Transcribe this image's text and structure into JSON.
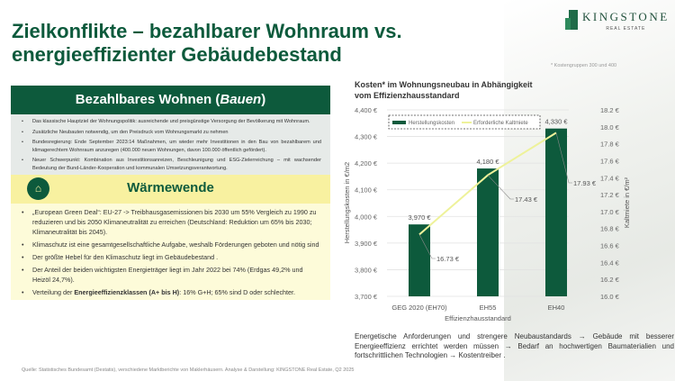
{
  "header": {
    "title_line1": "Zielkonflikte – bezahlbarer Wohnraum vs.",
    "title_line2": "energieeffizienter Gebäudebestand",
    "logo_name": "KINGSTONE",
    "logo_sub": "REAL ESTATE"
  },
  "left": {
    "section1": {
      "title": "Bezahlbares Wohnen (",
      "title_italic": "Bauen",
      "title_end": ")",
      "bullets": [
        "Das klassische Hauptziel der Wohnungspolitik: ausreichende und preisgünstige Versorgung der Bevölkerung mit Wohnraum.",
        "Zusätzliche Neubauten notwendig, um den Preisdruck vom Wohnungsmarkt zu nehmen",
        "Bundesregierung: Ende September 2023:14 Maßnahmen, um wieder mehr Investitionen in den Bau von bezahlbarem und klimagerechtem Wohnraum anzuregen (400.000 neuen Wohnungen, davon 100.000 öffentlich gefördert).",
        "Neuer Schwerpunkt: Kombination aus Investitionsanreizen, Beschleunigung und ESG-Zielerreichung – mit wachsender Bedeutung der Bund-Länder-Kooperation und kommunalen Umsetzungsverantwortung."
      ]
    },
    "section2": {
      "title": "Wärmewende",
      "bullets": [
        "„European Green Deal“:  EU-27 -> Treibhausgasemissionen bis 2030 um 55% Vergleich zu 1990 zu reduzieren und bis 2050 Klimaneutralität zu erreichen (Deutschland: Reduktion um 65% bis 2030; Klimaneutralität bis 2045).",
        "Klimaschutz ist eine gesamtgesellschaftliche Aufgabe, weshalb Förderungen geboten und nötig sind",
        "Der größte Hebel für den Klimaschutz liegt im Gebäudebestand .",
        "Der Anteil der beiden wichtigsten Energieträger liegt im Jahr 2022 bei 74% (Erdgas 49,2% und Heizöl 24,7%)."
      ],
      "last_pre": "Verteilung der ",
      "last_bold": "Energieeffizienzklassen (A+ bis H)",
      "last_post": ": 16% G+H; 65% sind D oder schlechter."
    }
  },
  "source": "Quelle: Statistisches Bundesamt (Destatis), verschiedene Marktberichte von Maklerhäusern. Analyse & Darstellung: KINGSTONE Real Estate, Q2 2025",
  "footnote": "* Kostengruppen 300 und 400",
  "chart_title_1": "Kosten* im Wohnungsneubau in Abhängigkeit",
  "chart_title_2": "vom Effizienzhausstandard",
  "comment": "Energetische Anforderungen und strengere Neubaustandards → Gebäude mit besserer Energieeffizienz errichtet werden müssen → Bedarf an hochwertigen Baumaterialien und fortschrittlichen Technologien → Kostentreiber .",
  "colors": {
    "green": "#0d5a3c",
    "line": "#eef29a"
  },
  "chart_data": {
    "type": "bar",
    "categories": [
      "GEG 2020 (EH70)",
      "EH55",
      "EH40"
    ],
    "series": [
      {
        "name": "Herstellungskosten",
        "type": "bar",
        "axis": "left",
        "values": [
          3970,
          4180,
          4330
        ],
        "labels": [
          "3,970 €",
          "4,180 €",
          "4,330 €"
        ]
      },
      {
        "name": "Erforderliche Kaltmiete",
        "type": "line",
        "axis": "right",
        "values": [
          16.73,
          17.43,
          17.93
        ],
        "labels": [
          "16.73 €",
          "17.43 €",
          "17.93 €"
        ]
      }
    ],
    "xlabel": "Effizienzhausstandard",
    "ylabel": "Herstellungskosten in €/m2",
    "y2label": "Kaltmiete in €/m²",
    "ylim": [
      3700,
      4400
    ],
    "yticks": [
      "3,700 €",
      "3,800 €",
      "3,900 €",
      "4,000 €",
      "4,100 €",
      "4,200 €",
      "4,300 €",
      "4,400 €"
    ],
    "y2lim": [
      16.0,
      18.2
    ],
    "y2ticks": [
      "16.0 €",
      "16.2 €",
      "16.4 €",
      "16.6 €",
      "16.8 €",
      "17.0 €",
      "17.2 €",
      "17.4 €",
      "17.6 €",
      "17.8 €",
      "18.0 €",
      "18.2 €"
    ],
    "legend": "top-left",
    "grid": true
  }
}
